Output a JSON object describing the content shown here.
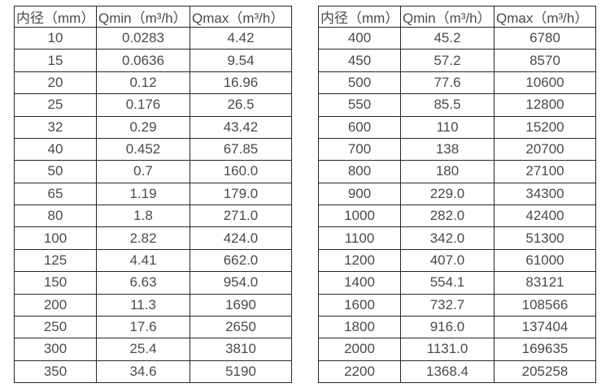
{
  "colors": {
    "background": "#ffffff",
    "text": "#4a4a4a",
    "border": "#262626"
  },
  "chart_data": [
    {
      "type": "table",
      "position": "left",
      "headers": [
        "内径（mm）",
        "Qmin（m³/h）",
        "Qmax（m³/h）"
      ],
      "rows": [
        [
          "10",
          "0.0283",
          "4.42"
        ],
        [
          "15",
          "0.0636",
          "9.54"
        ],
        [
          "20",
          "0.12",
          "16.96"
        ],
        [
          "25",
          "0.176",
          "26.5"
        ],
        [
          "32",
          "0.29",
          "43.42"
        ],
        [
          "40",
          "0.452",
          "67.85"
        ],
        [
          "50",
          "0.7",
          "160.0"
        ],
        [
          "65",
          "1.19",
          "179.0"
        ],
        [
          "80",
          "1.8",
          "271.0"
        ],
        [
          "100",
          "2.82",
          "424.0"
        ],
        [
          "125",
          "4.41",
          "662.0"
        ],
        [
          "150",
          "6.63",
          "954.0"
        ],
        [
          "200",
          "11.3",
          "1690"
        ],
        [
          "250",
          "17.6",
          "2650"
        ],
        [
          "300",
          "25.4",
          "3810"
        ],
        [
          "350",
          "34.6",
          "5190"
        ]
      ]
    },
    {
      "type": "table",
      "position": "right",
      "headers": [
        "内径（mm）",
        "Qmin（m³/h）",
        "Qmax（m³/h）"
      ],
      "rows": [
        [
          "400",
          "45.2",
          "6780"
        ],
        [
          "450",
          "57.2",
          "8570"
        ],
        [
          "500",
          "77.6",
          "10600"
        ],
        [
          "550",
          "85.5",
          "12800"
        ],
        [
          "600",
          "110",
          "15200"
        ],
        [
          "700",
          "138",
          "20700"
        ],
        [
          "800",
          "180",
          "27100"
        ],
        [
          "900",
          "229.0",
          "34300"
        ],
        [
          "1000",
          "282.0",
          "42400"
        ],
        [
          "1100",
          "342.0",
          "51300"
        ],
        [
          "1200",
          "407.0",
          "61000"
        ],
        [
          "1400",
          "554.1",
          "83121"
        ],
        [
          "1600",
          "732.7",
          "108566"
        ],
        [
          "1800",
          "916.0",
          "137404"
        ],
        [
          "2000",
          "1131.0",
          "169635"
        ],
        [
          "2200",
          "1368.4",
          "205258"
        ]
      ]
    }
  ]
}
